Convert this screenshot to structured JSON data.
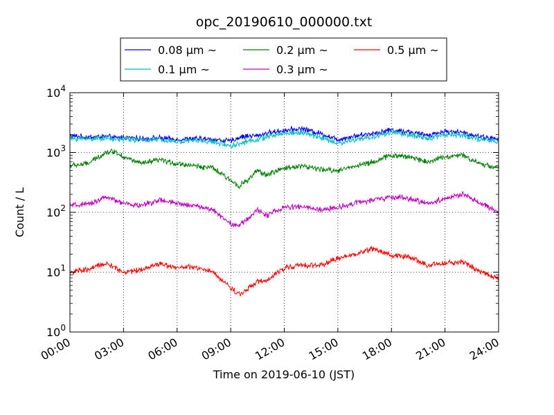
{
  "chart_data": {
    "type": "line",
    "title": "opc_20190610_000000.txt",
    "xlabel": "Time on 2019-06-10 (JST)",
    "ylabel": "Count / L",
    "xlim": [
      "2019-06-10T00:00",
      "2019-06-11T00:00"
    ],
    "ylim": [
      1,
      10000
    ],
    "yscale": "log",
    "grid": true,
    "legend_position": "top-center",
    "xticks": [
      "00:00",
      "03:00",
      "06:00",
      "09:00",
      "12:00",
      "15:00",
      "18:00",
      "21:00",
      "24:00"
    ],
    "yticks": [
      {
        "base": "10",
        "exp": "0"
      },
      {
        "base": "10",
        "exp": "1"
      },
      {
        "base": "10",
        "exp": "2"
      },
      {
        "base": "10",
        "exp": "3"
      },
      {
        "base": "10",
        "exp": "4"
      }
    ],
    "x_hours": [
      0.0,
      1.0,
      2.0,
      2.5,
      3.0,
      4.0,
      5.0,
      6.0,
      7.0,
      8.0,
      9.0,
      9.5,
      10.0,
      10.5,
      11.0,
      12.0,
      13.0,
      14.0,
      15.0,
      16.0,
      17.0,
      18.0,
      19.0,
      20.0,
      21.0,
      22.0,
      23.0,
      24.0
    ],
    "series": [
      {
        "name": "0.08 µm ~",
        "color": "#0000ff",
        "values": [
          1900,
          1800,
          1850,
          1750,
          1800,
          1700,
          1750,
          1650,
          1700,
          1650,
          1550,
          1800,
          1900,
          1900,
          2100,
          2350,
          2500,
          2100,
          1650,
          1900,
          2100,
          2400,
          2200,
          1950,
          2250,
          2150,
          1850,
          1650
        ]
      },
      {
        "name": "0.1 µm ~",
        "color": "#00bfbf",
        "values": [
          1700,
          1700,
          1750,
          1650,
          1700,
          1600,
          1650,
          1500,
          1600,
          1500,
          1300,
          1400,
          1550,
          1650,
          1800,
          2100,
          2150,
          1800,
          1400,
          1650,
          1800,
          2200,
          1950,
          1700,
          2000,
          1950,
          1650,
          1500
        ]
      },
      {
        "name": "0.2 µm ~",
        "color": "#008000",
        "values": [
          600,
          650,
          1000,
          1050,
          850,
          650,
          750,
          650,
          600,
          550,
          340,
          280,
          350,
          500,
          420,
          550,
          600,
          520,
          500,
          600,
          700,
          900,
          850,
          700,
          850,
          900,
          650,
          550
        ]
      },
      {
        "name": "0.3 µm ~",
        "color": "#bf00bf",
        "values": [
          130,
          135,
          180,
          160,
          140,
          130,
          160,
          140,
          130,
          110,
          65,
          60,
          80,
          110,
          90,
          120,
          125,
          110,
          120,
          145,
          160,
          180,
          170,
          140,
          170,
          200,
          140,
          100
        ]
      },
      {
        "name": "0.5 µm ~",
        "color": "#ff0000",
        "values": [
          10,
          11,
          14,
          12,
          10,
          11,
          14,
          12,
          12,
          10,
          5.5,
          4.2,
          5.5,
          7,
          7,
          12,
          13,
          13,
          17,
          20,
          25,
          19,
          18,
          13,
          14,
          15,
          10,
          8
        ]
      }
    ]
  }
}
